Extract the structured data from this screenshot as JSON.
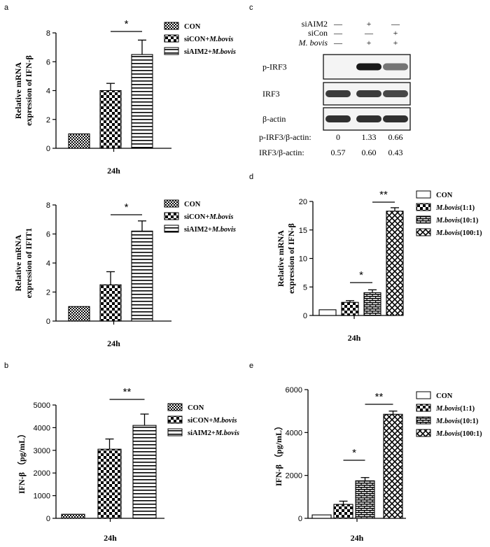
{
  "panel_letters": {
    "a": "a",
    "b": "b",
    "c": "c",
    "d": "d",
    "e": "e"
  },
  "chart_data": [
    {
      "id": "a1",
      "type": "bar",
      "panel": "a",
      "ylabel": [
        "Relative mRNA",
        "expression of IFN-β"
      ],
      "xlabel": "24h",
      "ylim": [
        0,
        8
      ],
      "yticks": [
        0,
        2,
        4,
        6,
        8
      ],
      "series": [
        {
          "name": "CON",
          "value": 1,
          "error": 0,
          "pattern": "small-check"
        },
        {
          "name": "siCON+M.bovis",
          "value": 4,
          "error": 0.5,
          "pattern": "check"
        },
        {
          "name": "siAIM2+M.bovis",
          "value": 6.5,
          "error": 1.0,
          "pattern": "hstripe"
        }
      ],
      "legend": [
        {
          "text": "CON"
        },
        {
          "text": "siCON+",
          "italic": "M.bovis"
        },
        {
          "text": "siAIM2+",
          "italic": "M.bovis"
        }
      ],
      "legend_position": "right",
      "significance": [
        {
          "from": 1,
          "to": 2,
          "label": "*"
        }
      ]
    },
    {
      "id": "a2",
      "type": "bar",
      "panel": "a",
      "ylabel": [
        "Relative mRNA",
        "expression of IFIT1"
      ],
      "xlabel": "24h",
      "ylim": [
        0,
        8
      ],
      "yticks": [
        0,
        2,
        4,
        6,
        8
      ],
      "series": [
        {
          "name": "CON",
          "value": 1,
          "error": 0,
          "pattern": "small-check"
        },
        {
          "name": "siCON+M.bovis",
          "value": 2.5,
          "error": 0.9,
          "pattern": "check"
        },
        {
          "name": "siAIM2+M.bovis",
          "value": 6.2,
          "error": 0.7,
          "pattern": "hstripe"
        }
      ],
      "legend": [
        {
          "text": "CON"
        },
        {
          "text": "siCON+",
          "italic": "M.bovis"
        },
        {
          "text": "siAIM2+",
          "italic": "M.bovis"
        }
      ],
      "legend_position": "right",
      "significance": [
        {
          "from": 1,
          "to": 2,
          "label": "*"
        }
      ]
    },
    {
      "id": "b",
      "type": "bar",
      "panel": "b",
      "ylabel": [
        "IFN-β （pg/mL）"
      ],
      "xlabel": "24h",
      "ylim": [
        0,
        5000
      ],
      "yticks": [
        0,
        1000,
        2000,
        3000,
        4000,
        5000
      ],
      "series": [
        {
          "name": "CON",
          "value": 180,
          "error": 0,
          "pattern": "small-check"
        },
        {
          "name": "siCON+M.bovis",
          "value": 3050,
          "error": 450,
          "pattern": "check"
        },
        {
          "name": "siAIM2+M.bovis",
          "value": 4100,
          "error": 500,
          "pattern": "hstripe"
        }
      ],
      "legend": [
        {
          "text": "CON"
        },
        {
          "text": "siCON+",
          "italic": "M.bovis"
        },
        {
          "text": "siAIM2+",
          "italic": "M.bovis"
        }
      ],
      "legend_position": "right",
      "significance": [
        {
          "from": 1,
          "to": 2,
          "label": "**"
        }
      ]
    },
    {
      "id": "d",
      "type": "bar",
      "panel": "d",
      "ylabel": [
        "Relative mRNA",
        "expression of IFN-β"
      ],
      "xlabel": "24h",
      "ylim": [
        0,
        20
      ],
      "yticks": [
        0,
        5,
        10,
        15,
        20
      ],
      "series": [
        {
          "name": "CON",
          "value": 1,
          "error": 0,
          "pattern": "white"
        },
        {
          "name": "M.bovis(1:1)",
          "value": 2.3,
          "error": 0.3,
          "pattern": "check"
        },
        {
          "name": "M.bovis(10:1)",
          "value": 4,
          "error": 0.5,
          "pattern": "brick"
        },
        {
          "name": "M.bovis(100:1)",
          "value": 18.3,
          "error": 0.6,
          "pattern": "cross"
        }
      ],
      "legend": [
        {
          "text": "CON"
        },
        {
          "italic": "M.bovis",
          "text": "(1:1)"
        },
        {
          "italic": "M.bovis",
          "text": "(10:1)"
        },
        {
          "italic": "M.bovis",
          "text": "(100:1)"
        }
      ],
      "legend_position": "right",
      "significance": [
        {
          "from": 1,
          "to": 2,
          "label": "*"
        },
        {
          "from": 2,
          "to": 3,
          "label": "**"
        }
      ]
    },
    {
      "id": "e",
      "type": "bar",
      "panel": "e",
      "ylabel": [
        "IFN-β （pg/mL）"
      ],
      "xlabel": "24h",
      "ylim": [
        0,
        6000
      ],
      "yticks": [
        0,
        2000,
        4000,
        6000
      ],
      "series": [
        {
          "name": "CON",
          "value": 160,
          "error": 0,
          "pattern": "white"
        },
        {
          "name": "M.bovis(1:1)",
          "value": 650,
          "error": 150,
          "pattern": "check"
        },
        {
          "name": "M.bovis(10:1)",
          "value": 1750,
          "error": 150,
          "pattern": "brick"
        },
        {
          "name": "M.bovis(100:1)",
          "value": 4850,
          "error": 150,
          "pattern": "cross"
        }
      ],
      "legend": [
        {
          "text": "CON"
        },
        {
          "italic": "M.bovis",
          "text": "(1:1)"
        },
        {
          "italic": "M.bovis",
          "text": "(10:1)"
        },
        {
          "italic": "M.bovis",
          "text": "(100:1)"
        }
      ],
      "legend_position": "right",
      "significance": [
        {
          "from": 1,
          "to": 2,
          "label": "*"
        },
        {
          "from": 2,
          "to": 3,
          "label": "**"
        }
      ]
    }
  ],
  "western_blot": {
    "conditions": [
      {
        "label": "siAIM2",
        "marks": [
          "—",
          "+",
          "—"
        ]
      },
      {
        "label": "siCon",
        "marks": [
          "—",
          "—",
          "+"
        ]
      },
      {
        "label": "M. bovis",
        "italic": true,
        "marks": [
          "—",
          "+",
          "+"
        ]
      }
    ],
    "bands": [
      {
        "label": "p-IRF3",
        "intensities": [
          0.0,
          1.0,
          0.6
        ]
      },
      {
        "label": "IRF3",
        "intensities": [
          0.85,
          0.85,
          0.8
        ]
      },
      {
        "label": "β-actin",
        "intensities": [
          0.9,
          0.9,
          0.9
        ]
      }
    ],
    "ratios": [
      {
        "label": "p-IRF3/β-actin:",
        "values": [
          "0",
          "1.33",
          "0.66"
        ]
      },
      {
        "label": "IRF3/β-actin:",
        "values": [
          "0.57",
          "0.60",
          "0.43"
        ]
      }
    ]
  }
}
